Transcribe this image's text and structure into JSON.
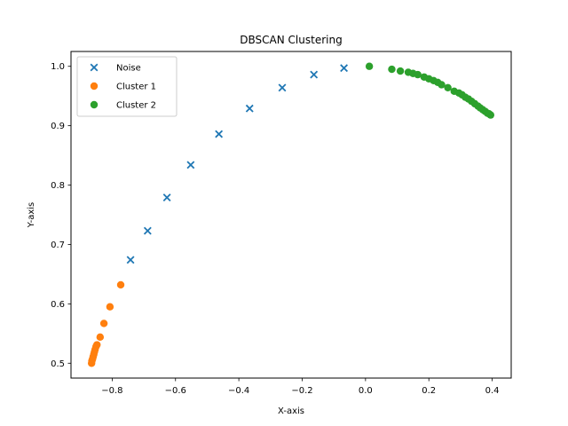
{
  "chart_data": {
    "type": "scatter",
    "title": "DBSCAN Clustering",
    "xlabel": "X-axis",
    "ylabel": "Y-axis",
    "xlim": [
      -0.93,
      0.46
    ],
    "ylim": [
      0.475,
      1.025
    ],
    "xticks": [
      -0.8,
      -0.6,
      -0.4,
      -0.2,
      0.0,
      0.2,
      0.4
    ],
    "xtick_labels": [
      "−0.8",
      "−0.6",
      "−0.4",
      "−0.2",
      "0.0",
      "0.2",
      "0.4"
    ],
    "yticks": [
      0.5,
      0.6,
      0.7,
      0.8,
      0.9,
      1.0
    ],
    "ytick_labels": [
      "0.5",
      "0.6",
      "0.7",
      "0.8",
      "0.9",
      "1.0"
    ],
    "grid": false,
    "legend_position": "top-left",
    "series": [
      {
        "name": "Noise",
        "marker": "x",
        "color": "#1f77b4",
        "points": [
          [
            -0.742,
            0.674
          ],
          [
            -0.688,
            0.723
          ],
          [
            -0.627,
            0.779
          ],
          [
            -0.552,
            0.834
          ],
          [
            -0.463,
            0.886
          ],
          [
            -0.366,
            0.929
          ],
          [
            -0.263,
            0.964
          ],
          [
            -0.163,
            0.986
          ],
          [
            -0.068,
            0.997
          ]
        ]
      },
      {
        "name": "Cluster 1",
        "marker": "o",
        "color": "#ff7f0e",
        "points": [
          [
            -0.865,
            0.5
          ],
          [
            -0.864,
            0.504
          ],
          [
            -0.862,
            0.507
          ],
          [
            -0.86,
            0.511
          ],
          [
            -0.858,
            0.515
          ],
          [
            -0.856,
            0.519
          ],
          [
            -0.854,
            0.523
          ],
          [
            -0.851,
            0.528
          ],
          [
            -0.848,
            0.531
          ],
          [
            -0.838,
            0.544
          ],
          [
            -0.826,
            0.567
          ],
          [
            -0.807,
            0.595
          ],
          [
            -0.773,
            0.632
          ]
        ]
      },
      {
        "name": "Cluster 2",
        "marker": "o",
        "color": "#2ca02c",
        "points": [
          [
            0.012,
            1.0
          ],
          [
            0.083,
            0.995
          ],
          [
            0.11,
            0.992
          ],
          [
            0.135,
            0.99
          ],
          [
            0.15,
            0.988
          ],
          [
            0.165,
            0.986
          ],
          [
            0.185,
            0.982
          ],
          [
            0.2,
            0.979
          ],
          [
            0.215,
            0.976
          ],
          [
            0.228,
            0.973
          ],
          [
            0.24,
            0.969
          ],
          [
            0.26,
            0.964
          ],
          [
            0.28,
            0.958
          ],
          [
            0.295,
            0.955
          ],
          [
            0.305,
            0.952
          ],
          [
            0.315,
            0.948
          ],
          [
            0.325,
            0.945
          ],
          [
            0.335,
            0.941
          ],
          [
            0.345,
            0.937
          ],
          [
            0.355,
            0.933
          ],
          [
            0.362,
            0.93
          ],
          [
            0.37,
            0.927
          ],
          [
            0.378,
            0.924
          ],
          [
            0.385,
            0.921
          ],
          [
            0.39,
            0.92
          ],
          [
            0.395,
            0.918
          ]
        ]
      }
    ]
  }
}
